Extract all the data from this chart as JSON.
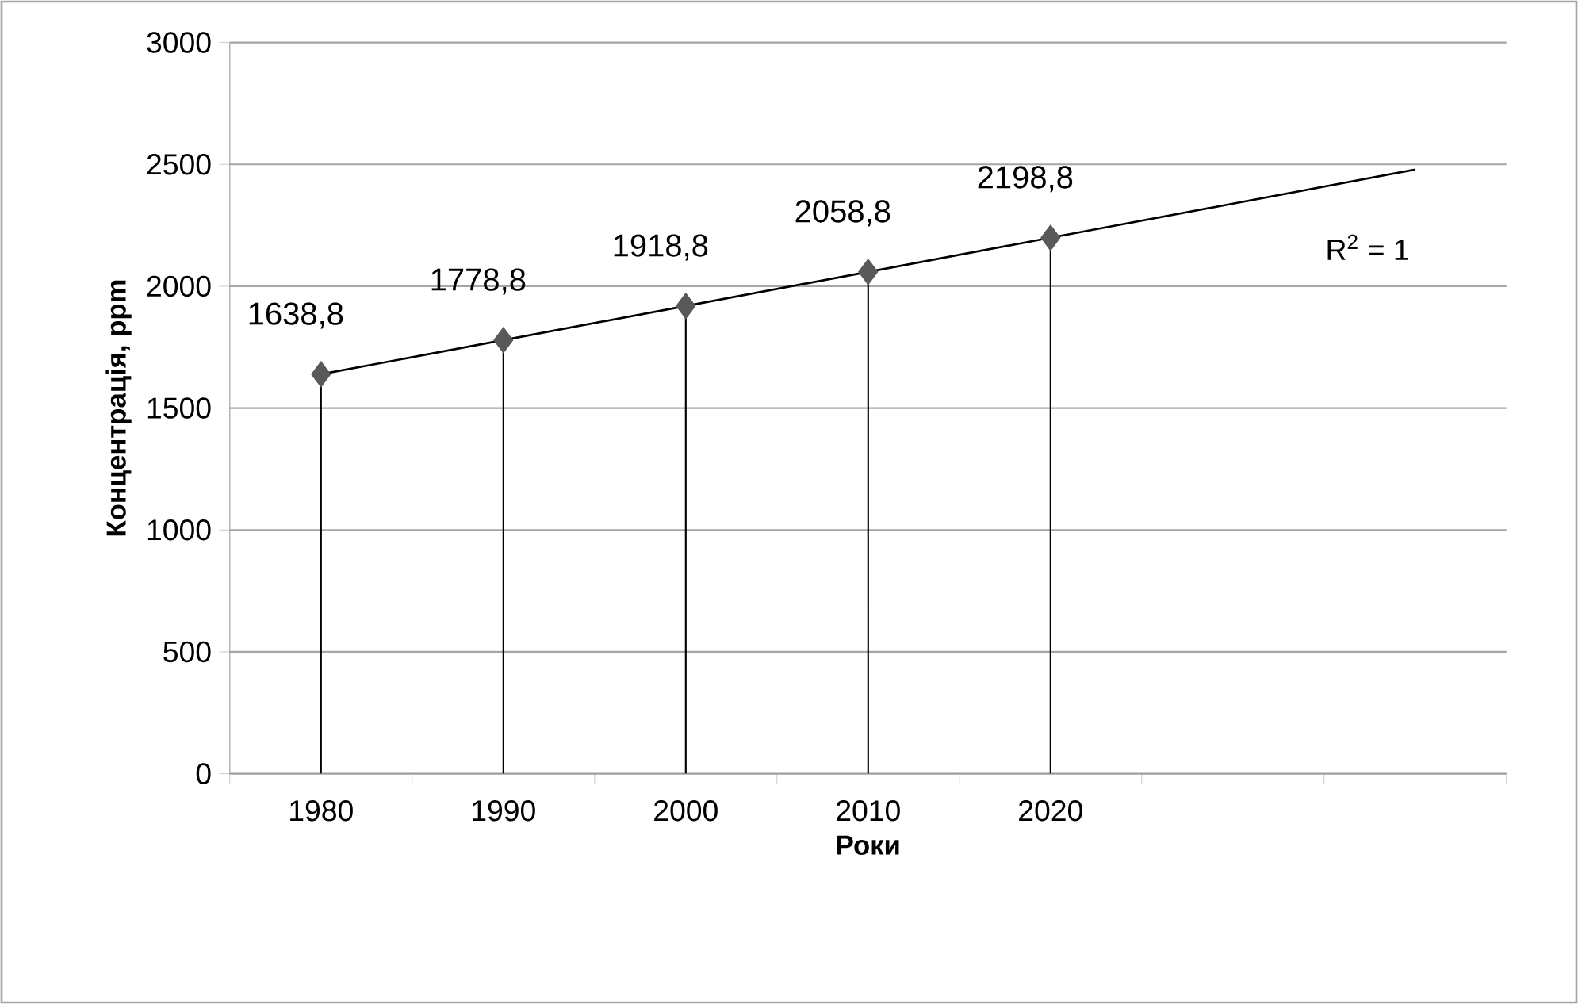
{
  "chart_data": {
    "type": "line",
    "xlabel": "Роки",
    "ylabel": "Концентрація, ppm",
    "categories": [
      "1980",
      "1990",
      "2000",
      "2010",
      "2020",
      null,
      null
    ],
    "series": [
      {
        "type": "lollipop",
        "color": "#595959",
        "marker": "diamond",
        "values": [
          1638.8,
          1778.8,
          1918.8,
          2058.8,
          2198.8,
          null,
          null
        ],
        "value_labels": [
          "1638,8",
          "1778,8",
          "1918,8",
          "2058,8",
          "2198,8",
          null,
          null
        ]
      },
      {
        "color": "#000000",
        "marker": "none",
        "values": [
          1638.8,
          1778.8,
          1918.8,
          2058.8,
          2198.8,
          2338.8,
          2478.8
        ]
      }
    ],
    "annotations": [
      "R$^{2}$ = 1"
    ],
    "ylim": [
      0,
      3000
    ],
    "yticks": [
      0,
      500,
      1000,
      1500,
      2000,
      2500,
      3000
    ],
    "grid": "y"
  }
}
